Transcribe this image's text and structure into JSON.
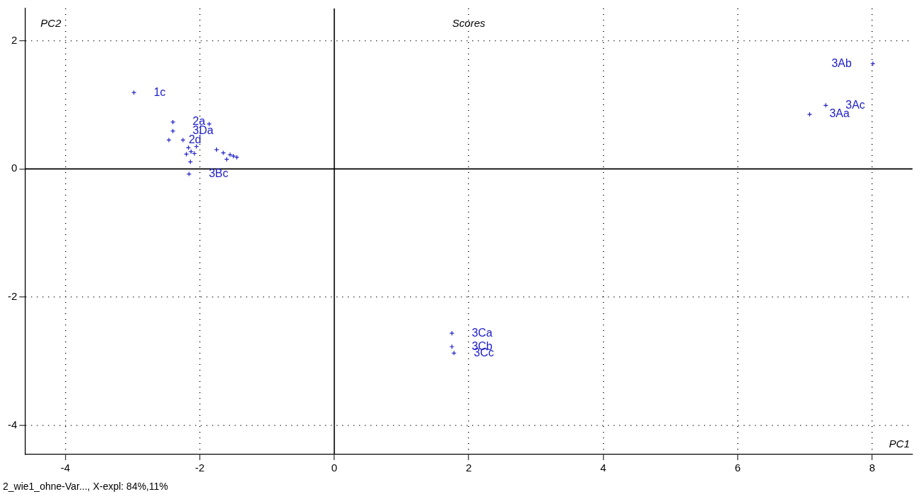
{
  "chart_data": {
    "type": "scatter",
    "title": "Scores",
    "xlabel": "PC1",
    "ylabel": "PC2",
    "x": [
      -2.98,
      -2.4,
      -2.4,
      -2.46,
      -2.25,
      -2.17,
      -2.13,
      -2.08,
      -2.2,
      -2.14,
      -2.16,
      -1.86,
      -2.05,
      -1.75,
      -1.65,
      -1.55,
      -1.5,
      -1.45,
      -1.6,
      8.01,
      7.31,
      7.07,
      1.75,
      1.75,
      1.78
    ],
    "series": [
      {
        "color": "#2020c8",
        "values": [
          1.19,
          0.73,
          0.59,
          0.45,
          0.45,
          0.33,
          0.27,
          0.24,
          0.23,
          0.11,
          -0.08,
          0.7,
          0.35,
          0.3,
          0.25,
          0.22,
          0.2,
          0.18,
          0.15,
          1.64,
          0.99,
          0.85,
          -2.56,
          -2.77,
          -2.87
        ]
      }
    ],
    "xlim": [
      -4.6,
      8.6
    ],
    "ylim": [
      -4.45,
      2.5
    ],
    "xticks": [
      -4,
      -2,
      0,
      2,
      4,
      6,
      8
    ],
    "yticks": [
      -4,
      -2,
      0,
      2
    ],
    "grid": true,
    "marker": "cross",
    "legend": false,
    "annotations": [
      {
        "text": "1c",
        "x": -2.98,
        "y": 1.19
      },
      {
        "text": "2a",
        "x": -2.4,
        "y": 0.73
      },
      {
        "text": "3Da",
        "x": -2.4,
        "y": 0.59
      },
      {
        "text": "2d",
        "x": -2.46,
        "y": 0.45
      },
      {
        "text": "3Bc",
        "x": -2.16,
        "y": -0.08
      },
      {
        "text": "3Ab",
        "x": 8.01,
        "y": 1.64
      },
      {
        "text": "3Ac",
        "x": 7.31,
        "y": 0.99
      },
      {
        "text": "3Aa",
        "x": 7.07,
        "y": 0.85
      },
      {
        "text": "3Ca",
        "x": 1.75,
        "y": -2.56
      },
      {
        "text": "3Cb",
        "x": 1.75,
        "y": -2.77
      },
      {
        "text": "3Cc",
        "x": 1.78,
        "y": -2.87
      },
      "2_wie1_ohne-Var..., X-expl: 84%,11%"
    ]
  }
}
